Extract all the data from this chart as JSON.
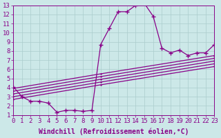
{
  "xlabel": "Windchill (Refroidissement éolien,°C)",
  "background_color": "#cce8e8",
  "line_color": "#880088",
  "xlim": [
    0,
    23
  ],
  "ylim": [
    1,
    13
  ],
  "xticks": [
    0,
    1,
    2,
    3,
    4,
    5,
    6,
    7,
    8,
    9,
    10,
    11,
    12,
    13,
    14,
    15,
    16,
    17,
    18,
    19,
    20,
    21,
    22,
    23
  ],
  "yticks": [
    1,
    2,
    3,
    4,
    5,
    6,
    7,
    8,
    9,
    10,
    11,
    12,
    13
  ],
  "main_curve": {
    "x": [
      0,
      1,
      2,
      3,
      4,
      5,
      6,
      7,
      8,
      9,
      10,
      11,
      12,
      13,
      14,
      15,
      16,
      17,
      18,
      19,
      20,
      21,
      22,
      23
    ],
    "y": [
      4.1,
      3.0,
      2.5,
      2.5,
      2.3,
      1.3,
      1.5,
      1.5,
      1.4,
      1.5,
      8.7,
      10.5,
      12.3,
      12.3,
      13.0,
      13.2,
      11.8,
      8.3,
      7.8,
      8.1,
      7.5,
      7.8,
      7.8,
      8.7
    ]
  },
  "diag_lines": [
    {
      "x": [
        0,
        10,
        23
      ],
      "y": [
        3.9,
        5.5,
        7.5
      ]
    },
    {
      "x": [
        0,
        10,
        23
      ],
      "y": [
        3.6,
        5.2,
        7.2
      ]
    },
    {
      "x": [
        0,
        10,
        23
      ],
      "y": [
        3.3,
        4.9,
        6.9
      ]
    },
    {
      "x": [
        0,
        10,
        23
      ],
      "y": [
        3.0,
        4.6,
        6.6
      ]
    },
    {
      "x": [
        0,
        10,
        23
      ],
      "y": [
        2.7,
        4.3,
        6.3
      ]
    }
  ],
  "marker": "+",
  "markersize": 4,
  "linewidth": 0.9,
  "grid_color": "#aacccc",
  "font_color": "#880088",
  "font_family": "monospace",
  "xlabel_fontsize": 7,
  "tick_fontsize": 6.5
}
